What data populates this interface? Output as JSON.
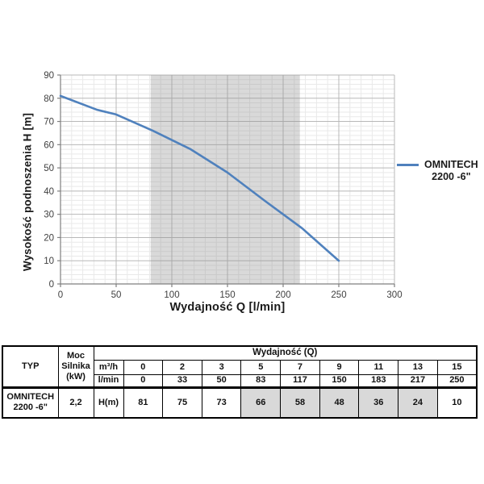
{
  "chart_data": {
    "type": "line",
    "title": "",
    "xlabel": "Wydajność Q [l/min]",
    "ylabel": "Wysokość podnoszenia H [m]",
    "xlim": [
      0,
      300
    ],
    "ylim": [
      0,
      90
    ],
    "x_major_step": 50,
    "x_minor_step": 10,
    "y_major_step": 10,
    "y_minor_step": 2,
    "grid": true,
    "legend_position": "right",
    "legend_label_lines": [
      "OMNITECH",
      "2200 -6\""
    ],
    "series": [
      {
        "name": "OMNITECH 2200 -6\"",
        "x": [
          0,
          33,
          50,
          83,
          117,
          150,
          183,
          217,
          250
        ],
        "y": [
          81,
          75,
          73,
          66,
          58,
          48,
          36,
          24,
          10
        ]
      }
    ],
    "band": {
      "x_start": 81,
      "x_end": 215,
      "fill": "rgba(145,145,145,0.34)"
    },
    "colors": {
      "line": "#4f81bd",
      "grid_major": "#b8b8b8",
      "grid_minor": "#e9e9e9",
      "axis": "#7f7f7f",
      "tick_label": "#3f3f3f"
    }
  },
  "table": {
    "typ_header": "TYP",
    "moc_header_lines": [
      "Moc",
      "Silnika",
      "(kW)"
    ],
    "q_header": "Wydajność (Q)",
    "unit_m3h": "m³/h",
    "unit_lmin": "l/min",
    "unit_h": "H(m)",
    "m3h_values": [
      "0",
      "2",
      "3",
      "5",
      "7",
      "9",
      "11",
      "13",
      "15"
    ],
    "lmin_values": [
      "0",
      "33",
      "50",
      "83",
      "117",
      "150",
      "183",
      "217",
      "250"
    ],
    "pump_name_lines": [
      "OMNITECH",
      "2200 -6\""
    ],
    "power_kw": "2,2",
    "h_values": [
      "81",
      "75",
      "73",
      "66",
      "58",
      "48",
      "36",
      "24",
      "10"
    ],
    "highlighted_h_indexes": [
      3,
      4,
      5,
      6,
      7
    ],
    "highlight_color": "#d9d9d9"
  }
}
